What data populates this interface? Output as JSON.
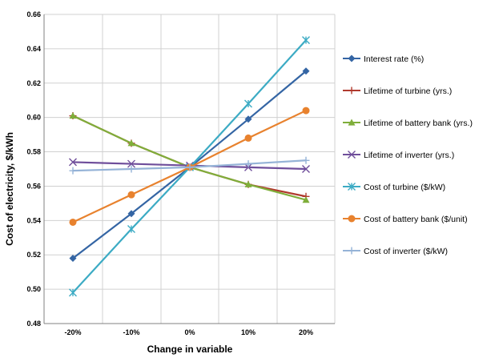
{
  "chart_data": {
    "type": "line",
    "xlabel": "Change in variable",
    "ylabel": "Cost of electricity, $/kWh",
    "categories": [
      "-20%",
      "-10%",
      "0%",
      "10%",
      "20%"
    ],
    "x": [
      -20,
      -10,
      0,
      10,
      20
    ],
    "ylim": [
      0.48,
      0.66
    ],
    "yticks": [
      "0.48",
      "0.50",
      "0.52",
      "0.54",
      "0.56",
      "0.58",
      "0.60",
      "0.62",
      "0.64",
      "0.66"
    ],
    "ytick_values": [
      0.48,
      0.5,
      0.52,
      0.54,
      0.56,
      0.58,
      0.6,
      0.62,
      0.64,
      0.66
    ],
    "grid": true,
    "legend_position": "right",
    "series": [
      {
        "name": "Interest rate (%)",
        "color": "#3465A4",
        "marker": "diamond",
        "values": [
          0.518,
          0.544,
          0.571,
          0.599,
          0.627
        ]
      },
      {
        "name": "Lifetime of turbine (yrs.)",
        "color": "#B03A2E",
        "marker": "plus",
        "values": [
          0.601,
          0.585,
          0.571,
          0.561,
          0.554
        ]
      },
      {
        "name": "Lifetime of battery bank (yrs.)",
        "color": "#7FAE3A",
        "marker": "triangle",
        "values": [
          0.601,
          0.585,
          0.571,
          0.561,
          0.552
        ]
      },
      {
        "name": "Lifetime of inverter (yrs.)",
        "color": "#6F4E9B",
        "marker": "x",
        "values": [
          0.574,
          0.573,
          0.572,
          0.571,
          0.57
        ]
      },
      {
        "name": "Cost of turbine ($/kW)",
        "color": "#3CABC4",
        "marker": "asterisk",
        "values": [
          0.498,
          0.535,
          0.571,
          0.608,
          0.645
        ]
      },
      {
        "name": "Cost of battery bank ($/unit)",
        "color": "#E8822E",
        "marker": "circle",
        "values": [
          0.539,
          0.555,
          0.571,
          0.588,
          0.604
        ]
      },
      {
        "name": "Cost of inverter ($/kW)",
        "color": "#95B3D7",
        "marker": "plus",
        "values": [
          0.569,
          0.57,
          0.571,
          0.573,
          0.575
        ]
      }
    ]
  }
}
